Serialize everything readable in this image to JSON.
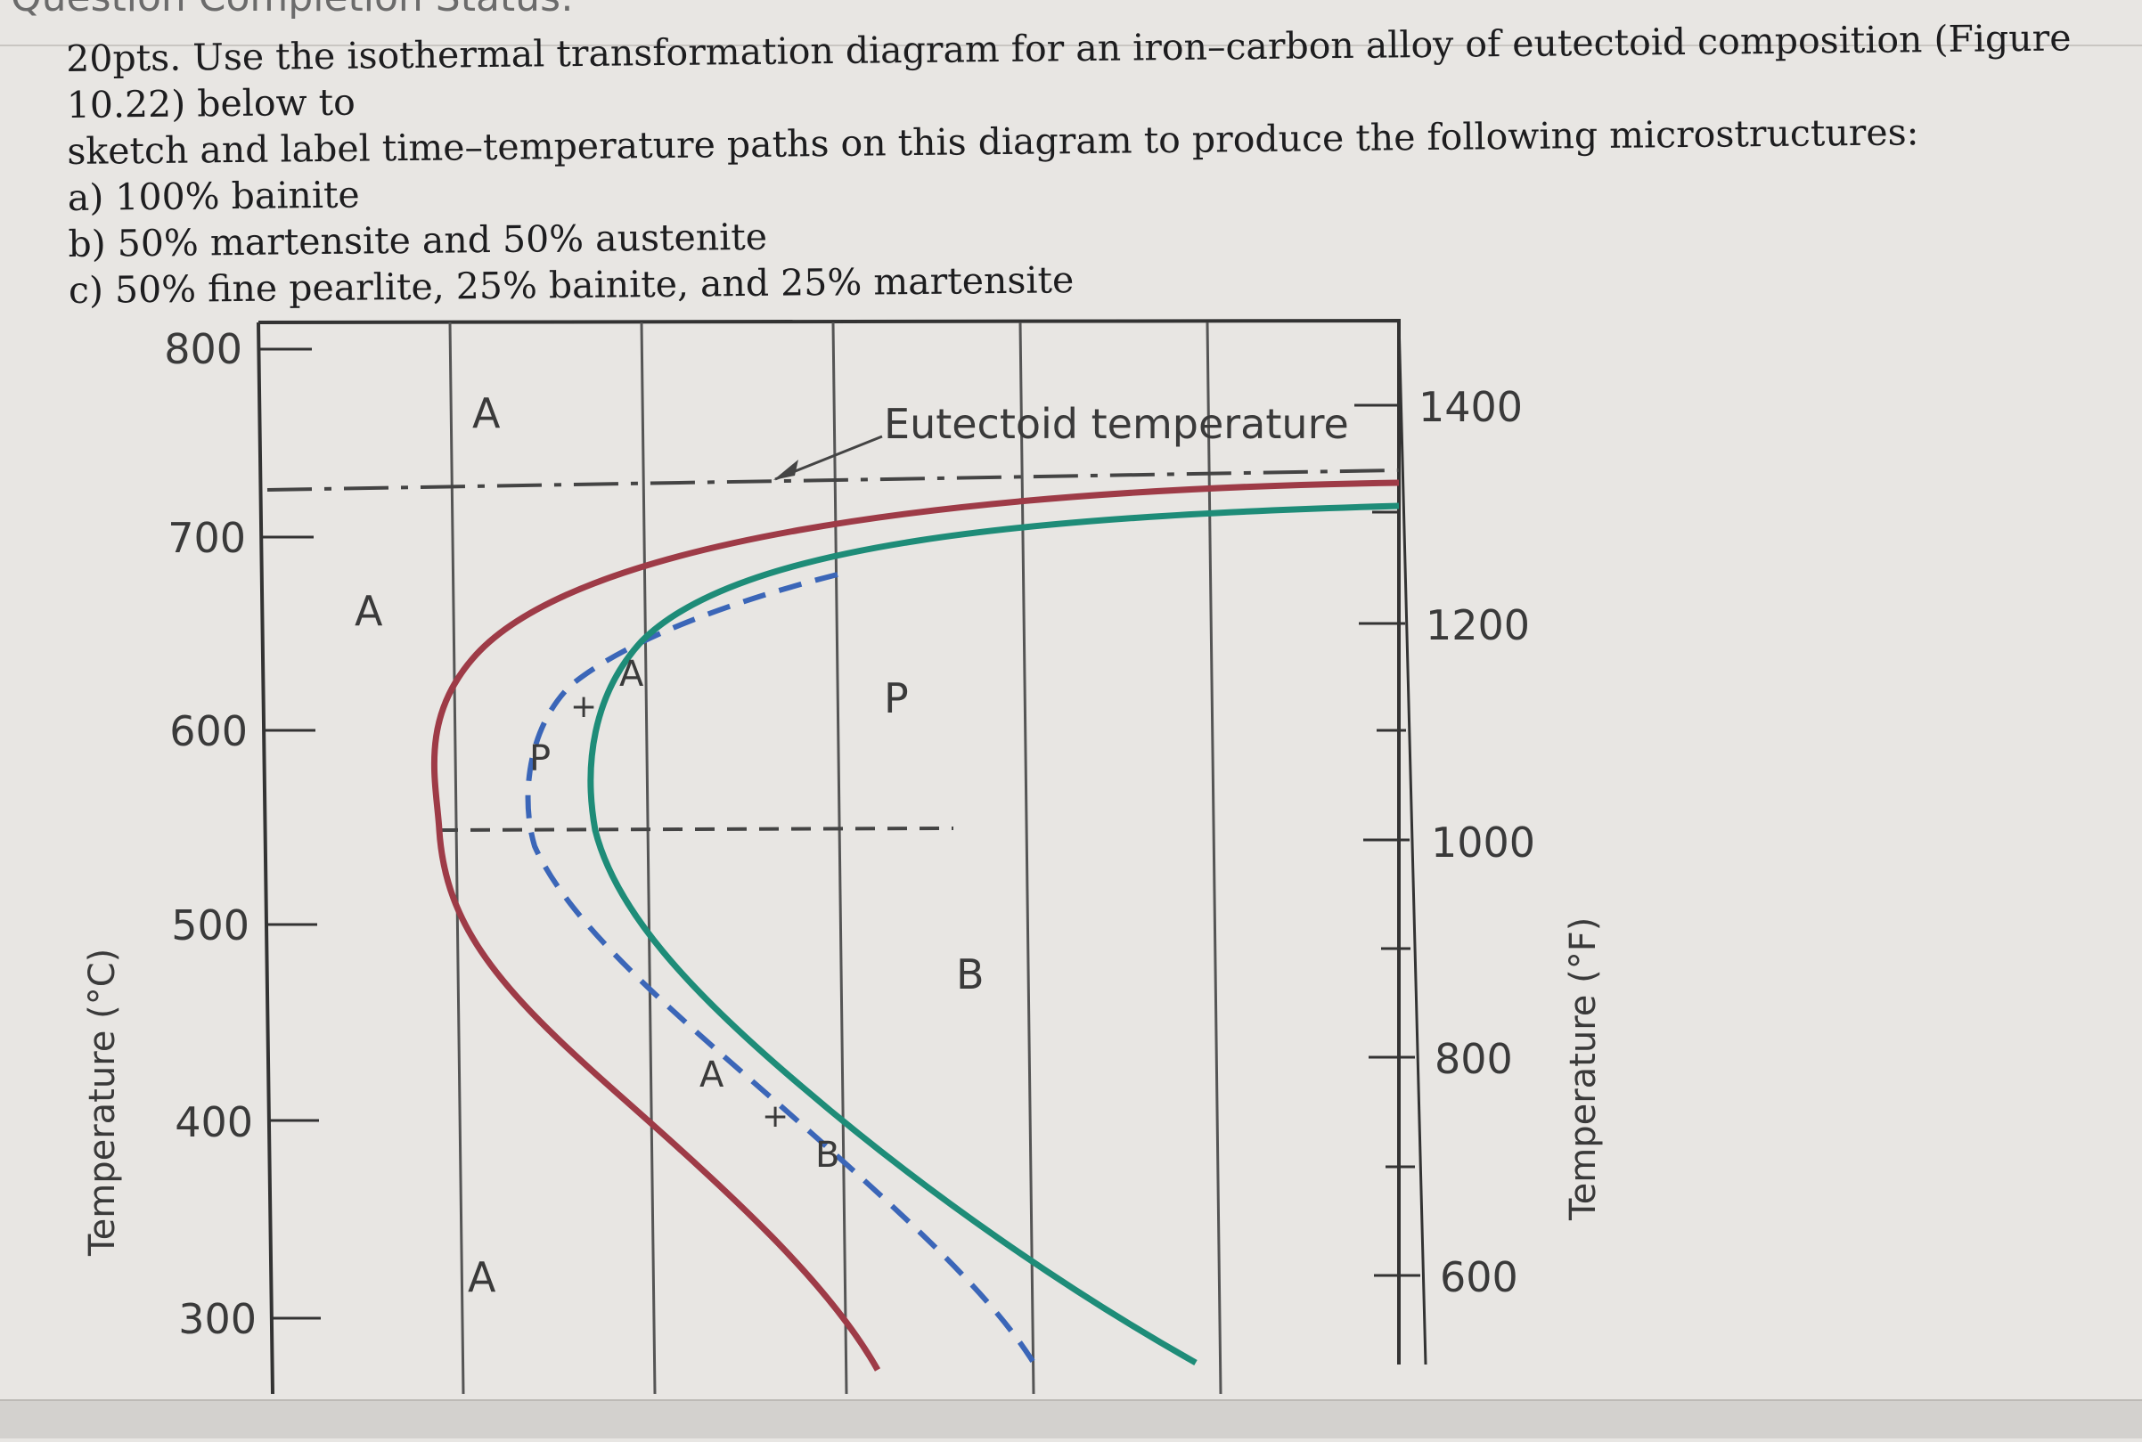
{
  "header": {
    "title": "Question Completion Status:"
  },
  "question": {
    "line1": "20pts. Use the isothermal transformation diagram for an iron–carbon alloy of eutectoid composition (Figure 10.22) below to",
    "line2": "sketch and label time–temperature paths on this diagram to produce the following microstructures:",
    "options": [
      "a) 100% bainite",
      "b) 50% martensite and 50% austenite",
      "c) 50% fine pearlite, 25% bainite, and 25% martensite"
    ]
  },
  "chart_data": {
    "type": "line",
    "title": "",
    "xlabel": "",
    "ylabel": "Temperature (°C)",
    "ylabel_right": "Temperature (°F)",
    "ylim": [
      300,
      800
    ],
    "yticks_c": [
      "800",
      "700",
      "600",
      "500",
      "400",
      "300"
    ],
    "yticks_f": [
      "1400",
      "1200",
      "1000",
      "800",
      "600"
    ],
    "eutectoid_temperature_c": 727,
    "annotation": "Eutectoid temperature",
    "regions": [
      "A",
      "A",
      "A",
      "P",
      "B"
    ],
    "mixed_region_labels": {
      "upper": [
        "P",
        "+",
        "A"
      ],
      "lower": [
        "A",
        "+",
        "B"
      ]
    },
    "series": [
      {
        "name": "",
        "points_c": [
          [
            727,
            0.95
          ],
          [
            700,
            0.55
          ],
          [
            650,
            0.3
          ],
          [
            600,
            0.2
          ],
          [
            560,
            0.17
          ],
          [
            540,
            0.165
          ],
          [
            500,
            0.18
          ],
          [
            450,
            0.26
          ],
          [
            400,
            0.37
          ],
          [
            350,
            0.5
          ],
          [
            300,
            0.6
          ]
        ],
        "color": "#9e3b47",
        "dash": false
      },
      {
        "name": "",
        "points_c": [
          [
            673,
            0.52
          ],
          [
            620,
            0.33
          ],
          [
            580,
            0.265
          ],
          [
            540,
            0.25
          ],
          [
            500,
            0.3
          ],
          [
            450,
            0.42
          ],
          [
            400,
            0.55
          ],
          [
            350,
            0.68
          ],
          [
            300,
            0.78
          ]
        ],
        "color": "#3b66b8",
        "dash": true
      },
      {
        "name": "",
        "points_c": [
          [
            710,
            1.0
          ],
          [
            680,
            0.7
          ],
          [
            640,
            0.42
          ],
          [
            600,
            0.33
          ],
          [
            560,
            0.3
          ],
          [
            540,
            0.3
          ],
          [
            500,
            0.37
          ],
          [
            450,
            0.5
          ],
          [
            400,
            0.64
          ],
          [
            350,
            0.77
          ],
          [
            300,
            0.86
          ]
        ],
        "color": "#1e8c78",
        "dash": false
      }
    ],
    "grid": true
  },
  "colors": {
    "pearlite_start": "#9e3b47",
    "fifty_percent": "#3b66b8",
    "pearlite_finish": "#1e8c78"
  }
}
